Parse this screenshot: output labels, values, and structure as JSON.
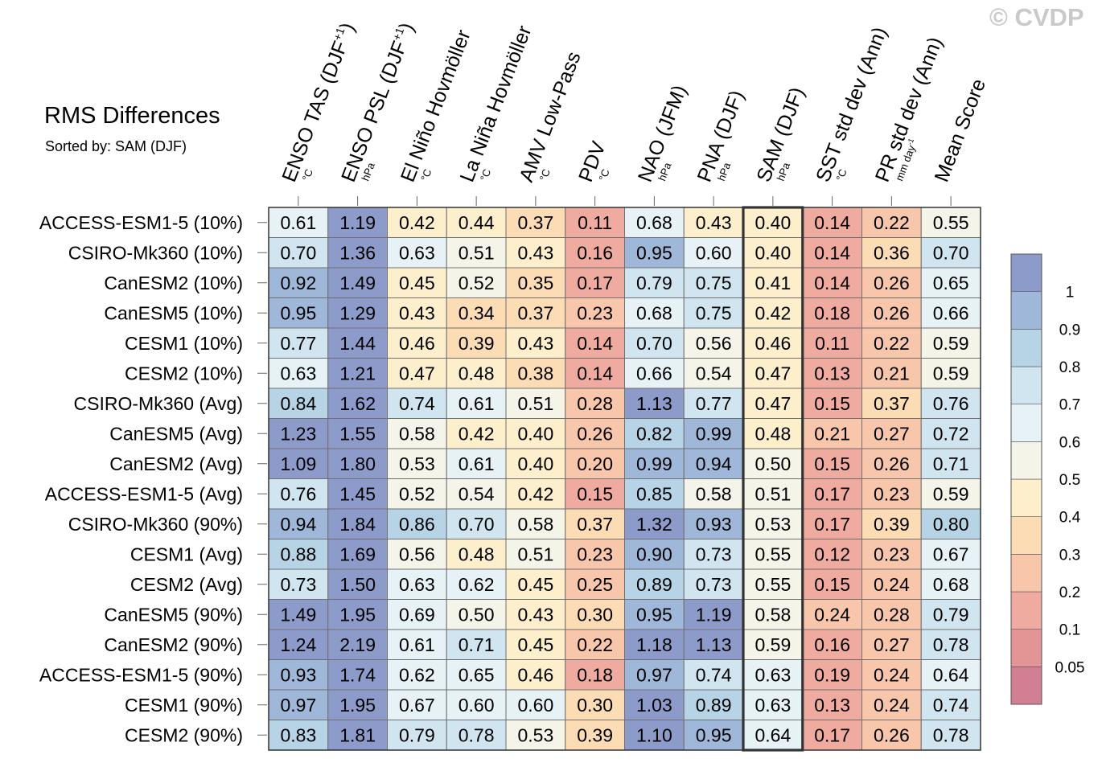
{
  "header": {
    "title": "RMS Differences",
    "subtitle": "Sorted by: SAM (DJF)",
    "copyright": "© CVDP"
  },
  "colors": {
    "colorbar": [
      "#d27f94",
      "#e39595",
      "#f0aba1",
      "#f8c6ab",
      "#fbdcb5",
      "#fdefcb",
      "#f4f4e8",
      "#e6f2f6",
      "#d0e5f0",
      "#b7d3e6",
      "#9fb7d8",
      "#8d9bca"
    ],
    "highlight_box": "#333333",
    "grid": "#6f6f6f"
  },
  "chart_data": {
    "type": "heatmap",
    "title": "RMS Differences",
    "subtitle": "Sorted by: SAM (DJF)",
    "highlighted_column": "SAM (DJF)",
    "columns": [
      {
        "name": "ENSO TAS (DJF+1)",
        "main": "ENSO TAS (DJF",
        "sup": "+1",
        "close": ")",
        "unit": "°C"
      },
      {
        "name": "ENSO PSL (DJF+1)",
        "main": "ENSO PSL (DJF",
        "sup": "+1",
        "close": ")",
        "unit": "hPa"
      },
      {
        "name": "El Niño Hovmöller",
        "main": "El Niño Hovmöller",
        "unit": "°C"
      },
      {
        "name": "La Niña Hovmöller",
        "main": "La Niña Hovmöller",
        "unit": "°C"
      },
      {
        "name": "AMV Low-Pass",
        "main": "AMV Low-Pass",
        "unit": "°C"
      },
      {
        "name": "PDV",
        "main": "PDV",
        "unit": "°C"
      },
      {
        "name": "NAO (JFM)",
        "main": "NAO (JFM)",
        "unit": "hPa"
      },
      {
        "name": "PNA (DJF)",
        "main": "PNA (DJF)",
        "unit": "hPa"
      },
      {
        "name": "SAM (DJF)",
        "main": "SAM (DJF)",
        "unit": "hPa"
      },
      {
        "name": "SST std dev (Ann)",
        "main": "SST std dev (Ann)",
        "unit": "°C"
      },
      {
        "name": "PR std dev (Ann)",
        "main": "PR std dev (Ann)",
        "unit": "mm day-1"
      },
      {
        "name": "Mean Score",
        "main": "Mean Score",
        "unit": ""
      }
    ],
    "rows": [
      "ACCESS-ESM1-5 (10%)",
      "CSIRO-Mk360 (10%)",
      "CanESM2 (10%)",
      "CanESM5 (10%)",
      "CESM1 (10%)",
      "CESM2 (10%)",
      "CSIRO-Mk360 (Avg)",
      "CanESM5 (Avg)",
      "CanESM2 (Avg)",
      "ACCESS-ESM1-5 (Avg)",
      "CSIRO-Mk360 (90%)",
      "CESM1 (Avg)",
      "CESM2 (Avg)",
      "CanESM5 (90%)",
      "CanESM2 (90%)",
      "ACCESS-ESM1-5 (90%)",
      "CESM1 (90%)",
      "CESM2 (90%)"
    ],
    "values": [
      [
        "0.61",
        "1.19",
        "0.42",
        "0.44",
        "0.37",
        "0.11",
        "0.68",
        "0.43",
        "0.40",
        "0.14",
        "0.22",
        "0.55"
      ],
      [
        "0.70",
        "1.36",
        "0.63",
        "0.51",
        "0.43",
        "0.16",
        "0.95",
        "0.60",
        "0.40",
        "0.14",
        "0.36",
        "0.70"
      ],
      [
        "0.92",
        "1.49",
        "0.45",
        "0.52",
        "0.35",
        "0.17",
        "0.79",
        "0.75",
        "0.41",
        "0.14",
        "0.26",
        "0.65"
      ],
      [
        "0.95",
        "1.29",
        "0.43",
        "0.34",
        "0.37",
        "0.23",
        "0.68",
        "0.75",
        "0.42",
        "0.18",
        "0.26",
        "0.66"
      ],
      [
        "0.77",
        "1.44",
        "0.46",
        "0.39",
        "0.43",
        "0.14",
        "0.70",
        "0.56",
        "0.46",
        "0.11",
        "0.22",
        "0.59"
      ],
      [
        "0.63",
        "1.21",
        "0.47",
        "0.48",
        "0.38",
        "0.14",
        "0.66",
        "0.54",
        "0.47",
        "0.13",
        "0.21",
        "0.59"
      ],
      [
        "0.84",
        "1.62",
        "0.74",
        "0.61",
        "0.51",
        "0.28",
        "1.13",
        "0.77",
        "0.47",
        "0.15",
        "0.37",
        "0.76"
      ],
      [
        "1.23",
        "1.55",
        "0.58",
        "0.42",
        "0.40",
        "0.26",
        "0.82",
        "0.99",
        "0.48",
        "0.21",
        "0.27",
        "0.72"
      ],
      [
        "1.09",
        "1.80",
        "0.53",
        "0.61",
        "0.40",
        "0.20",
        "0.99",
        "0.94",
        "0.50",
        "0.15",
        "0.26",
        "0.71"
      ],
      [
        "0.76",
        "1.45",
        "0.52",
        "0.54",
        "0.42",
        "0.15",
        "0.85",
        "0.58",
        "0.51",
        "0.17",
        "0.23",
        "0.59"
      ],
      [
        "0.94",
        "1.84",
        "0.86",
        "0.70",
        "0.58",
        "0.37",
        "1.32",
        "0.93",
        "0.53",
        "0.17",
        "0.39",
        "0.80"
      ],
      [
        "0.88",
        "1.69",
        "0.56",
        "0.48",
        "0.51",
        "0.23",
        "0.90",
        "0.73",
        "0.55",
        "0.12",
        "0.23",
        "0.67"
      ],
      [
        "0.73",
        "1.50",
        "0.63",
        "0.62",
        "0.45",
        "0.25",
        "0.89",
        "0.73",
        "0.55",
        "0.15",
        "0.24",
        "0.68"
      ],
      [
        "1.49",
        "1.95",
        "0.69",
        "0.50",
        "0.43",
        "0.30",
        "0.95",
        "1.19",
        "0.58",
        "0.24",
        "0.28",
        "0.79"
      ],
      [
        "1.24",
        "2.19",
        "0.61",
        "0.71",
        "0.45",
        "0.22",
        "1.18",
        "1.13",
        "0.59",
        "0.16",
        "0.27",
        "0.78"
      ],
      [
        "0.93",
        "1.74",
        "0.62",
        "0.65",
        "0.46",
        "0.18",
        "0.97",
        "0.74",
        "0.63",
        "0.19",
        "0.24",
        "0.64"
      ],
      [
        "0.97",
        "1.95",
        "0.67",
        "0.60",
        "0.60",
        "0.30",
        "1.03",
        "0.89",
        "0.63",
        "0.13",
        "0.24",
        "0.74"
      ],
      [
        "0.83",
        "1.81",
        "0.79",
        "0.78",
        "0.53",
        "0.39",
        "1.10",
        "0.95",
        "0.64",
        "0.17",
        "0.26",
        "0.78"
      ]
    ],
    "colorbar": {
      "levels": [
        0.05,
        0.1,
        0.2,
        0.3,
        0.4,
        0.5,
        0.6,
        0.7,
        0.8,
        0.9,
        1
      ],
      "labels": [
        "0.05",
        "0.1",
        "0.2",
        "0.3",
        "0.4",
        "0.5",
        "0.6",
        "0.7",
        "0.8",
        "0.9",
        "1"
      ]
    }
  }
}
